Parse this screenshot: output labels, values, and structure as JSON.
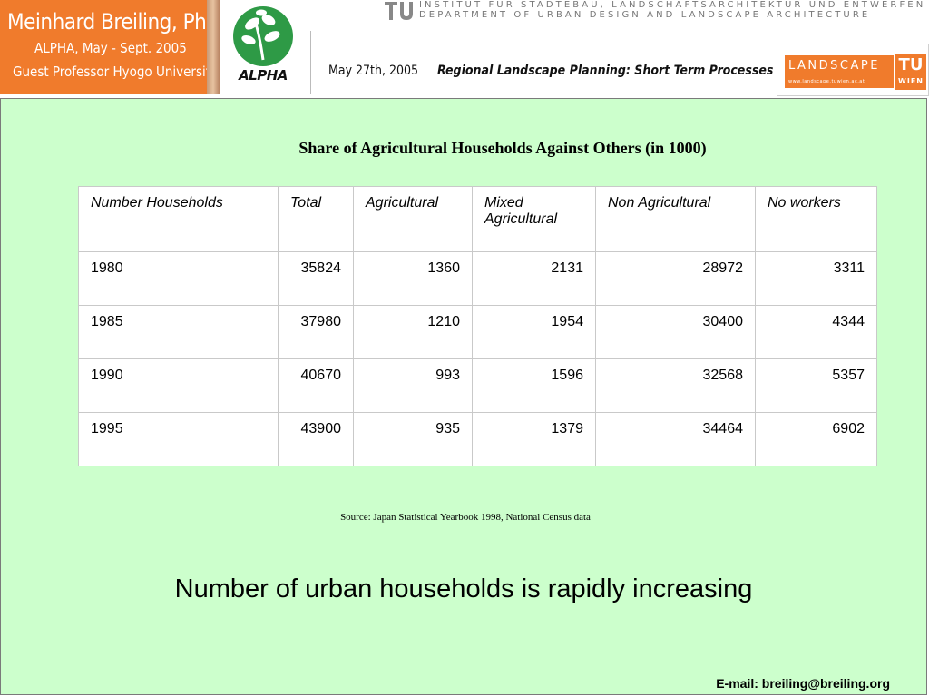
{
  "header": {
    "author_name": "Meinhard Breiling, Ph.D.",
    "author_line2": "ALPHA, May - Sept. 2005",
    "author_line3": "Guest Professor Hyogo University",
    "alpha_logo_text": "ALPHA",
    "institute_line1": "INSTITUT FÜR STÄDTEBAU, LANDSCHAFTSARCHITEKTUR UND ENTWERFEN",
    "institute_line2": "DEPARTMENT OF URBAN DESIGN AND LANDSCAPE ARCHITECTURE",
    "date": "May 27th, 2005",
    "course_title": "Regional Landscape Planning: Short Term Processes",
    "landscape_logo_word": "LANDSCAPE",
    "landscape_logo_url": "www.landscape.tuwien.ac.at",
    "tu_logo_tu": "TU",
    "tu_logo_wien": "WIEN"
  },
  "colors": {
    "brand_orange": "#f07b2c",
    "slide_background": "#ccffcc",
    "alpha_green": "#2e9a46"
  },
  "main": {
    "table_title": "Share of Agricultural Households Against Others (in 1000)",
    "table": {
      "headers": [
        "Number Households",
        "Total",
        "Agricultural",
        "Mixed Agricultural",
        "Non Agricultural",
        "No workers"
      ],
      "rows": [
        [
          "1980",
          "35824",
          "1360",
          "2131",
          "28972",
          "3311"
        ],
        [
          "1985",
          "37980",
          "1210",
          "1954",
          "30400",
          "4344"
        ],
        [
          "1990",
          "40670",
          "993",
          "1596",
          "32568",
          "5357"
        ],
        [
          "1995",
          "43900",
          "935",
          "1379",
          "34464",
          "6902"
        ]
      ]
    },
    "source": "Source: Japan Statistical Yearbook 1998, National Census data",
    "statement": "Number of urban households is rapidly increasing",
    "email": "E-mail: breiling@breiling.org"
  }
}
